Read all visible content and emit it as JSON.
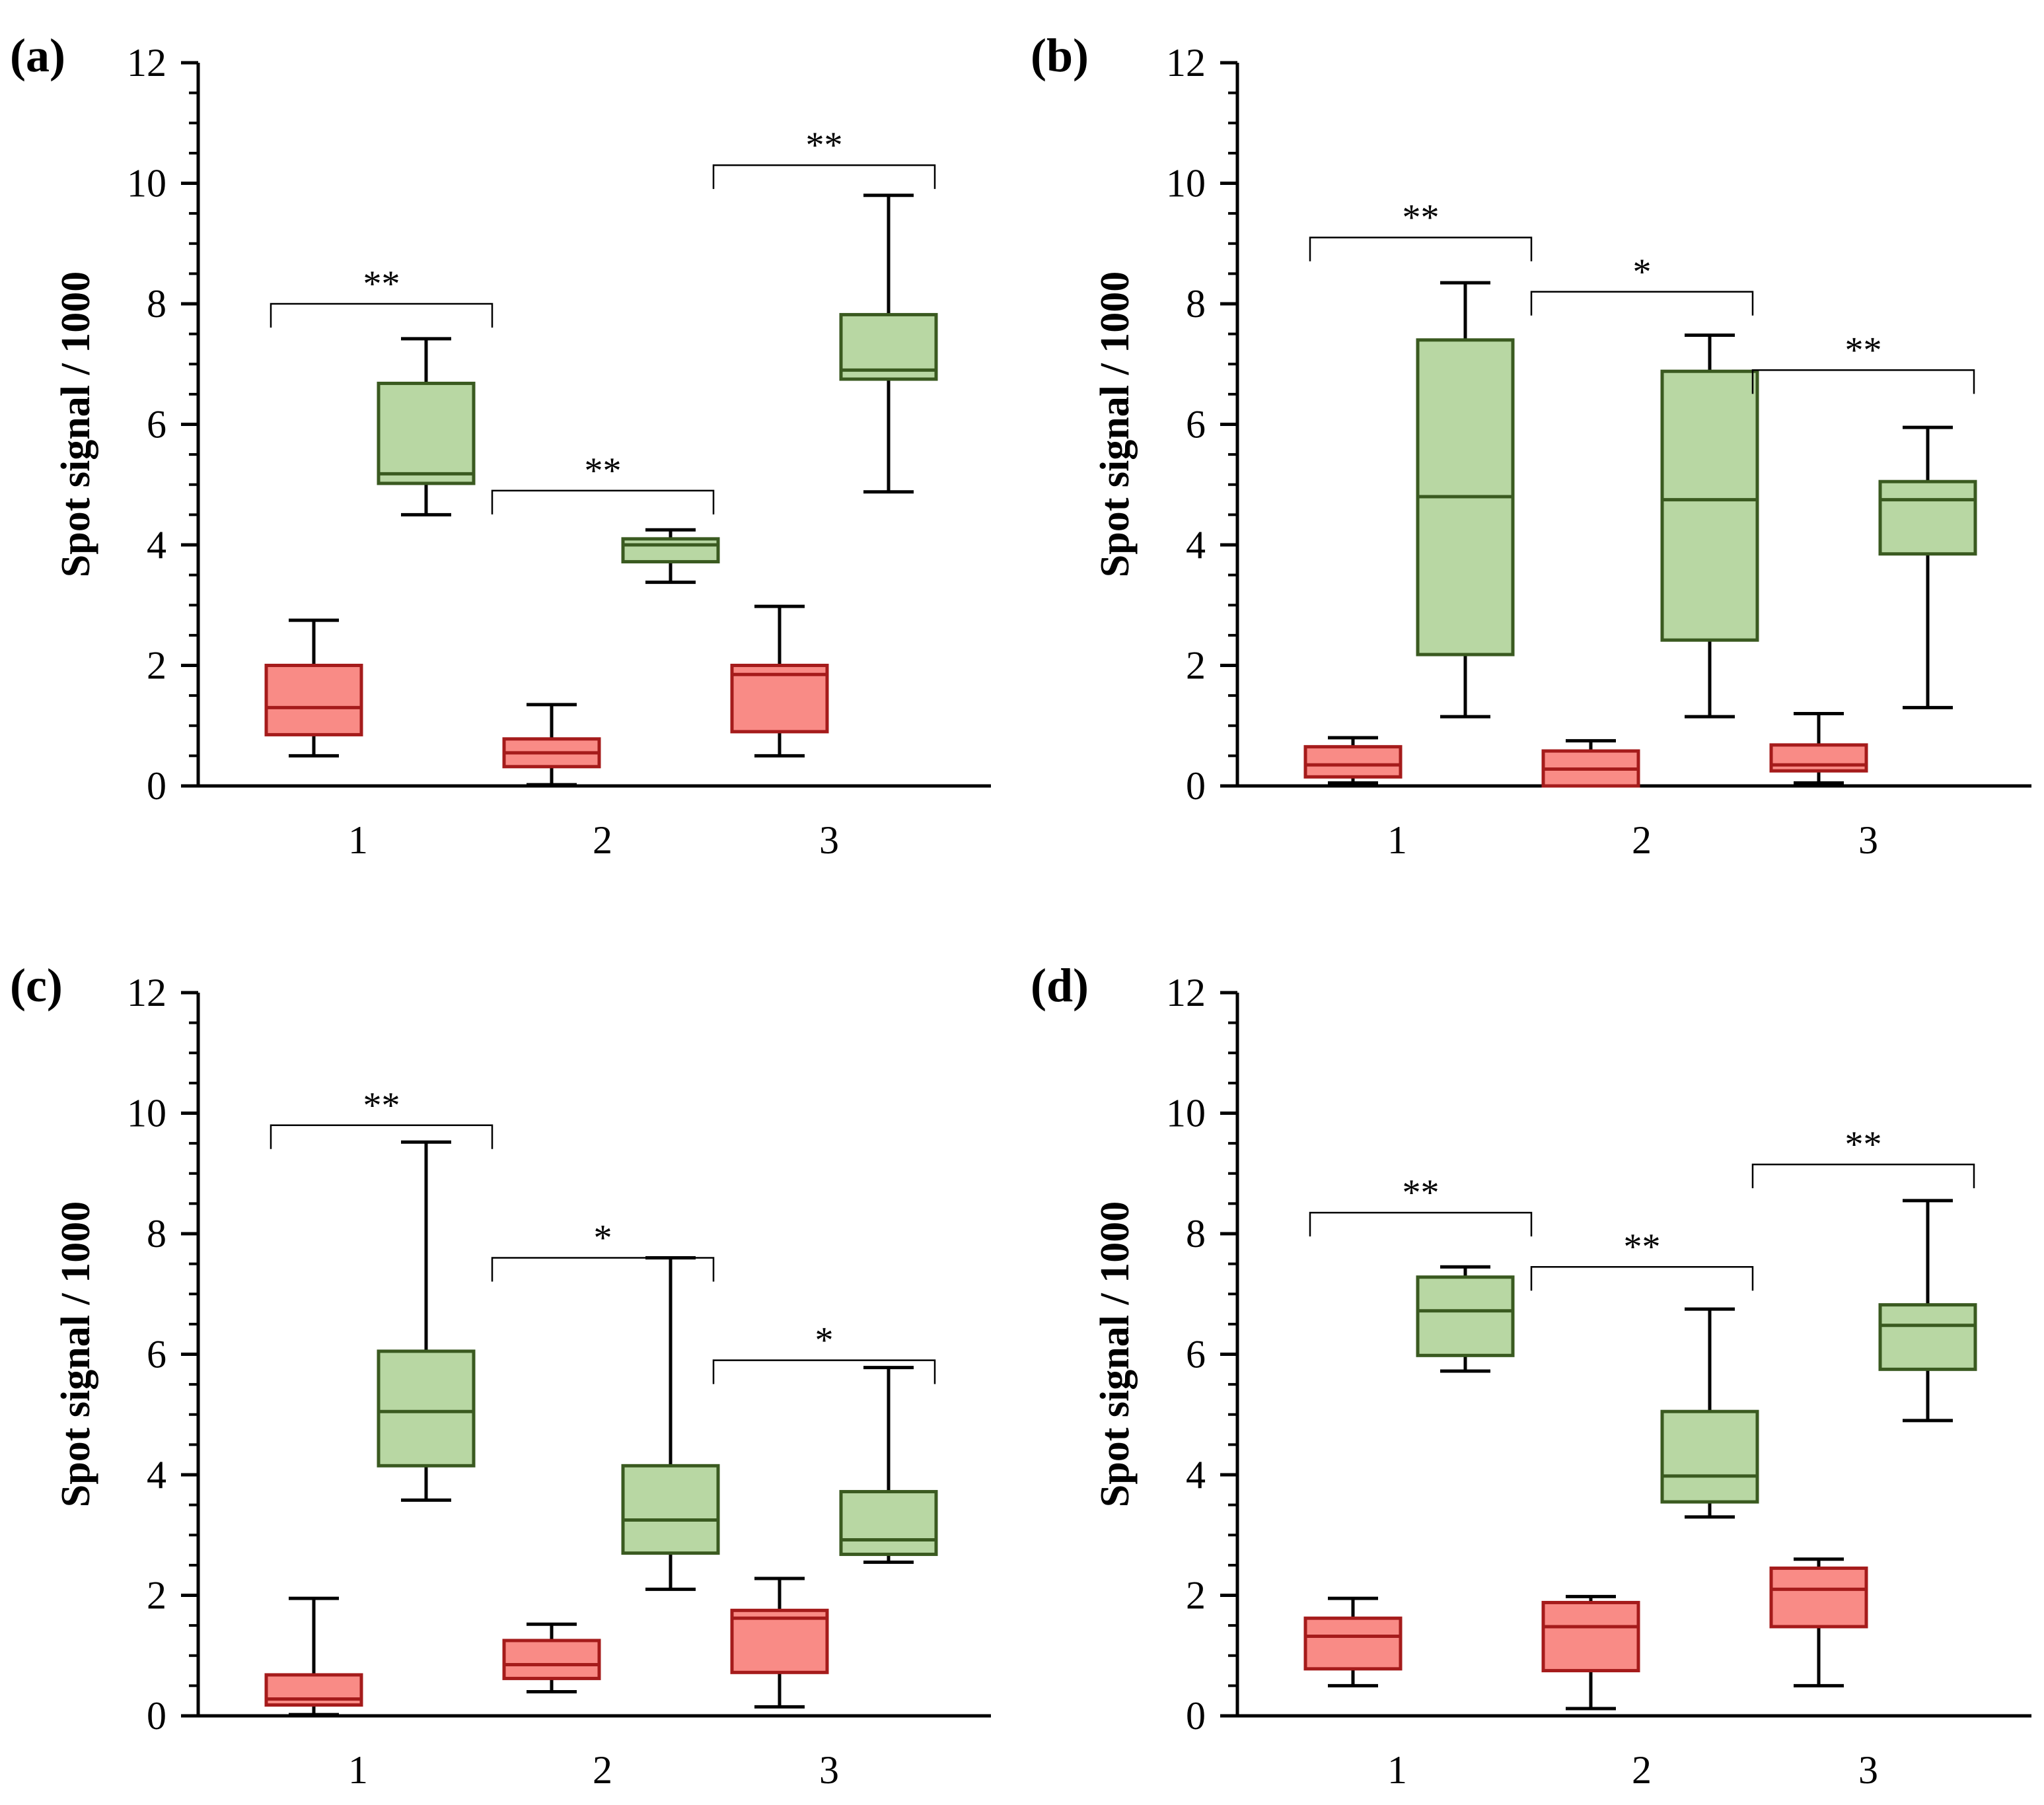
{
  "chart_data": [
    {
      "panel_label": "(a)",
      "type": "box",
      "ylabel": "Spot signal / 1000",
      "ylim": [
        0,
        12
      ],
      "yticks": [
        "0",
        "2",
        "4",
        "6",
        "8",
        "10",
        "12"
      ],
      "categories": [
        "1",
        "2",
        "3"
      ],
      "series": [
        {
          "name": "red",
          "color": "#f98b86",
          "edge": "#a51b1b",
          "boxes": [
            {
              "min": 0.5,
              "q1": 0.85,
              "median": 1.3,
              "q3": 2.0,
              "max": 2.75
            },
            {
              "min": 0.02,
              "q1": 0.32,
              "median": 0.55,
              "q3": 0.78,
              "max": 1.35
            },
            {
              "min": 0.5,
              "q1": 0.9,
              "median": 1.85,
              "q3": 2.0,
              "max": 2.98
            }
          ]
        },
        {
          "name": "green",
          "color": "#b8d7a3",
          "edge": "#3a5a20",
          "boxes": [
            {
              "min": 4.5,
              "q1": 5.02,
              "median": 5.18,
              "q3": 6.68,
              "max": 7.42
            },
            {
              "min": 3.38,
              "q1": 3.72,
              "median": 4.0,
              "q3": 4.1,
              "max": 4.25
            },
            {
              "min": 4.88,
              "q1": 6.75,
              "median": 6.9,
              "q3": 7.82,
              "max": 9.8
            }
          ]
        }
      ],
      "brackets": [
        {
          "from": 1,
          "to": 2,
          "label": "**",
          "y": 8.0
        },
        {
          "from": 2,
          "to": 3,
          "label": "**",
          "y": 4.9
        },
        {
          "from": 3,
          "to": 4,
          "label": "**",
          "y": 10.3
        }
      ]
    },
    {
      "panel_label": "(b)",
      "type": "box",
      "ylabel": "Spot signal / 1000",
      "ylim": [
        0,
        12
      ],
      "yticks": [
        "0",
        "2",
        "4",
        "6",
        "8",
        "10",
        "12"
      ],
      "categories": [
        "1",
        "2",
        "3"
      ],
      "series": [
        {
          "name": "red",
          "color": "#f98b86",
          "edge": "#a51b1b",
          "boxes": [
            {
              "min": 0.05,
              "q1": 0.15,
              "median": 0.35,
              "q3": 0.65,
              "max": 0.8
            },
            {
              "min": 0.0,
              "q1": 0.0,
              "median": 0.28,
              "q3": 0.58,
              "max": 0.75
            },
            {
              "min": 0.05,
              "q1": 0.25,
              "median": 0.35,
              "q3": 0.68,
              "max": 1.2
            }
          ]
        },
        {
          "name": "green",
          "color": "#b8d7a3",
          "edge": "#3a5a20",
          "boxes": [
            {
              "min": 1.15,
              "q1": 2.18,
              "median": 4.8,
              "q3": 7.4,
              "max": 8.35
            },
            {
              "min": 1.15,
              "q1": 2.42,
              "median": 4.75,
              "q3": 6.88,
              "max": 7.48
            },
            {
              "min": 1.3,
              "q1": 3.85,
              "median": 4.75,
              "q3": 5.05,
              "max": 5.95
            }
          ]
        }
      ],
      "brackets": [
        {
          "from": 1,
          "to": 2,
          "label": "**",
          "y": 9.1
        },
        {
          "from": 2,
          "to": 3,
          "label": "*",
          "y": 8.2
        },
        {
          "from": 3,
          "to": 4,
          "label": "**",
          "y": 6.9
        }
      ]
    },
    {
      "panel_label": "(c)",
      "type": "box",
      "ylabel": "Spot signal / 1000",
      "ylim": [
        0,
        12
      ],
      "yticks": [
        "0",
        "2",
        "4",
        "6",
        "8",
        "10",
        "12"
      ],
      "categories": [
        "1",
        "2",
        "3"
      ],
      "series": [
        {
          "name": "red",
          "color": "#f98b86",
          "edge": "#a51b1b",
          "boxes": [
            {
              "min": 0.02,
              "q1": 0.18,
              "median": 0.28,
              "q3": 0.68,
              "max": 1.95
            },
            {
              "min": 0.4,
              "q1": 0.62,
              "median": 0.85,
              "q3": 1.25,
              "max": 1.52
            },
            {
              "min": 0.15,
              "q1": 0.72,
              "median": 1.62,
              "q3": 1.75,
              "max": 2.28
            }
          ]
        },
        {
          "name": "green",
          "color": "#b8d7a3",
          "edge": "#3a5a20",
          "boxes": [
            {
              "min": 3.58,
              "q1": 4.15,
              "median": 5.05,
              "q3": 6.05,
              "max": 9.52
            },
            {
              "min": 2.1,
              "q1": 2.7,
              "median": 3.25,
              "q3": 4.15,
              "max": 7.6
            },
            {
              "min": 2.55,
              "q1": 2.68,
              "median": 2.92,
              "q3": 3.72,
              "max": 5.78
            }
          ]
        }
      ],
      "brackets": [
        {
          "from": 1,
          "to": 2,
          "label": "**",
          "y": 9.8
        },
        {
          "from": 2,
          "to": 3,
          "label": "*",
          "y": 7.6
        },
        {
          "from": 3,
          "to": 4,
          "label": "*",
          "y": 5.9
        }
      ]
    },
    {
      "panel_label": "(d)",
      "type": "box",
      "ylabel": "Spot signal / 1000",
      "ylim": [
        0,
        12
      ],
      "yticks": [
        "0",
        "2",
        "4",
        "6",
        "8",
        "10",
        "12"
      ],
      "categories": [
        "1",
        "2",
        "3"
      ],
      "series": [
        {
          "name": "red",
          "color": "#f98b86",
          "edge": "#a51b1b",
          "boxes": [
            {
              "min": 0.5,
              "q1": 0.78,
              "median": 1.32,
              "q3": 1.62,
              "max": 1.95
            },
            {
              "min": 0.12,
              "q1": 0.75,
              "median": 1.48,
              "q3": 1.88,
              "max": 1.98
            },
            {
              "min": 0.5,
              "q1": 1.48,
              "median": 2.1,
              "q3": 2.45,
              "max": 2.6
            }
          ]
        },
        {
          "name": "green",
          "color": "#b8d7a3",
          "edge": "#3a5a20",
          "boxes": [
            {
              "min": 5.72,
              "q1": 5.98,
              "median": 6.72,
              "q3": 7.28,
              "max": 7.45
            },
            {
              "min": 3.3,
              "q1": 3.55,
              "median": 3.98,
              "q3": 5.05,
              "max": 6.75
            },
            {
              "min": 4.9,
              "q1": 5.75,
              "median": 6.48,
              "q3": 6.82,
              "max": 8.55
            }
          ]
        }
      ],
      "brackets": [
        {
          "from": 1,
          "to": 2,
          "label": "**",
          "y": 8.35
        },
        {
          "from": 2,
          "to": 3,
          "label": "**",
          "y": 7.45
        },
        {
          "from": 3,
          "to": 4,
          "label": "**",
          "y": 9.15
        }
      ]
    }
  ]
}
